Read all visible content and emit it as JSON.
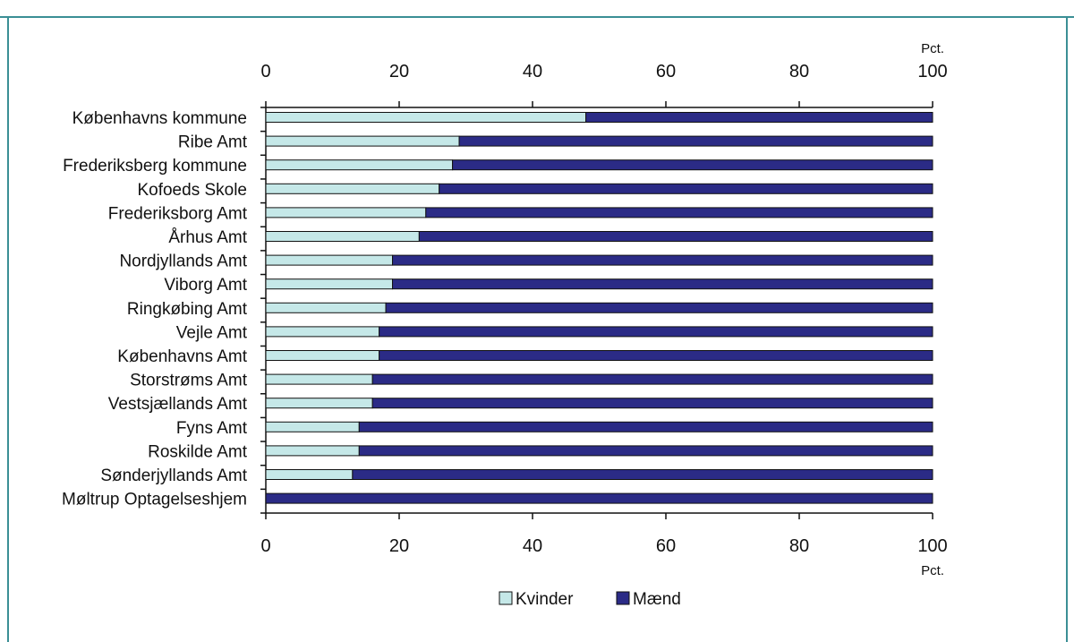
{
  "colors": {
    "frame": "#3b8f95",
    "kvinder": "#c5e8e8",
    "maend": "#2b2b86",
    "stroke": "#111111"
  },
  "chart_data": {
    "type": "bar",
    "orientation": "horizontal",
    "stacked": true,
    "title": "",
    "xlabel": "",
    "ylabel": "",
    "unit_top": "Pct.",
    "unit_bottom": "Pct.",
    "xlim": [
      0,
      100
    ],
    "xticks": [
      0,
      20,
      40,
      60,
      80,
      100
    ],
    "grid": false,
    "legend_position": "bottom-center",
    "categories": [
      "Københavns kommune",
      "Ribe Amt",
      "Frederiksberg kommune",
      "Kofoeds Skole",
      "Frederiksborg Amt",
      "Århus Amt",
      "Nordjyllands Amt",
      "Viborg Amt",
      "Ringkøbing Amt",
      "Vejle Amt",
      "Københavns Amt",
      "Storstrøms Amt",
      "Vestsjællands Amt",
      "Fyns Amt",
      "Roskilde Amt",
      "Sønderjyllands Amt",
      "Møltrup Optagelseshjem"
    ],
    "series": [
      {
        "name": "Kvinder",
        "color": "#c5e8e8",
        "values": [
          48,
          29,
          28,
          26,
          24,
          23,
          19,
          19,
          18,
          17,
          17,
          16,
          16,
          14,
          14,
          13,
          0
        ]
      },
      {
        "name": "Mænd",
        "color": "#2b2b86",
        "values": [
          52,
          71,
          72,
          74,
          76,
          77,
          81,
          81,
          82,
          83,
          83,
          84,
          84,
          86,
          86,
          87,
          100
        ]
      }
    ]
  }
}
